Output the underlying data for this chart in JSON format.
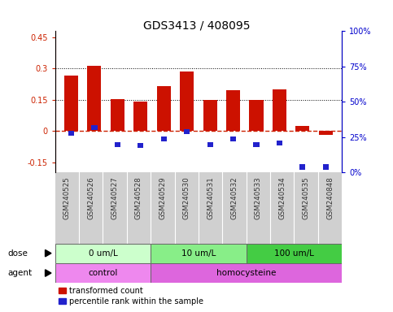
{
  "title": "GDS3413 / 408095",
  "samples": [
    "GSM240525",
    "GSM240526",
    "GSM240527",
    "GSM240528",
    "GSM240529",
    "GSM240530",
    "GSM240531",
    "GSM240532",
    "GSM240533",
    "GSM240534",
    "GSM240535",
    "GSM240848"
  ],
  "red_values": [
    0.265,
    0.315,
    0.155,
    0.143,
    0.215,
    0.285,
    0.15,
    0.195,
    0.15,
    0.2,
    0.025,
    -0.02
  ],
  "blue_pct": [
    28,
    32,
    20,
    19,
    24,
    29,
    20,
    24,
    20,
    21,
    4,
    4
  ],
  "ylim_left": [
    -0.2,
    0.48
  ],
  "yticks_left": [
    -0.15,
    0.0,
    0.15,
    0.3,
    0.45
  ],
  "yticks_right_pct": [
    0,
    25,
    50,
    75,
    100
  ],
  "ytick_labels_right": [
    "0%",
    "25%",
    "50%",
    "75%",
    "100%"
  ],
  "hlines": [
    0.15,
    0.3
  ],
  "dose_groups": [
    {
      "label": "0 um/L",
      "start": 0,
      "end": 4,
      "color": "#ccffcc"
    },
    {
      "label": "10 um/L",
      "start": 4,
      "end": 8,
      "color": "#88ee88"
    },
    {
      "label": "100 um/L",
      "start": 8,
      "end": 12,
      "color": "#44cc44"
    }
  ],
  "agent_groups": [
    {
      "label": "control",
      "start": 0,
      "end": 4,
      "color": "#ee88ee"
    },
    {
      "label": "homocysteine",
      "start": 4,
      "end": 12,
      "color": "#dd66dd"
    }
  ],
  "bar_color_red": "#cc1100",
  "bar_color_blue": "#2222cc",
  "zero_line_color": "#cc2200",
  "grid_line_color": "#000000",
  "bg_color": "#ffffff",
  "left_tick_color": "#cc2200",
  "right_tick_color": "#0000cc"
}
